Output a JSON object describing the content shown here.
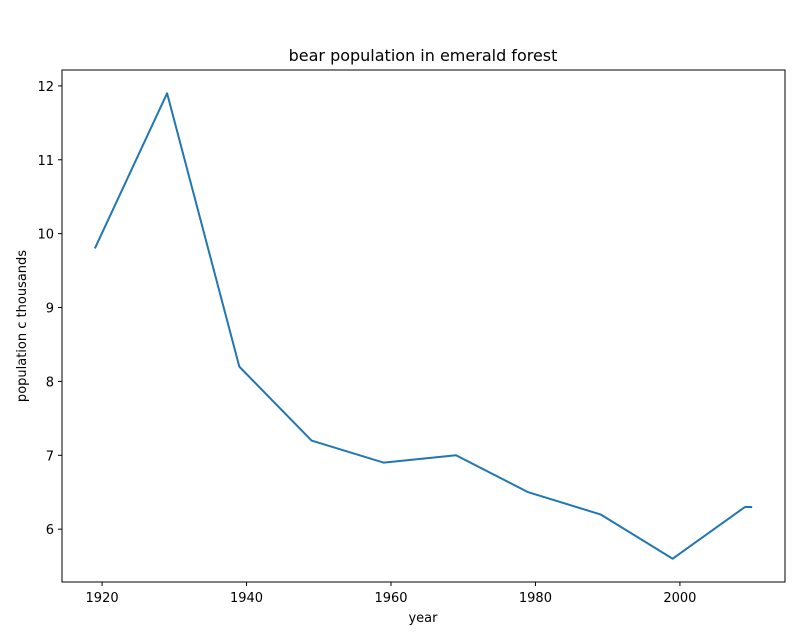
{
  "chart_data": {
    "type": "line",
    "title": "bear population in emerald forest",
    "xlabel": "year",
    "ylabel": "population c thousands",
    "x": [
      1919,
      1929,
      1939,
      1949,
      1959,
      1969,
      1979,
      1989,
      1999,
      2009,
      2010
    ],
    "series": [
      {
        "values": [
          9.8,
          11.9,
          8.2,
          7.2,
          6.9,
          7.0,
          6.5,
          6.2,
          5.6,
          6.3,
          6.3
        ],
        "color": "#1f77b4"
      }
    ],
    "xlim": [
      1914.45,
      2014.55
    ],
    "ylim": [
      5.285,
      12.215
    ],
    "xticks": [
      1920,
      1940,
      1960,
      1980,
      2000
    ],
    "yticks": [
      6,
      7,
      8,
      9,
      10,
      11,
      12
    ],
    "grid": false,
    "legend": false
  }
}
